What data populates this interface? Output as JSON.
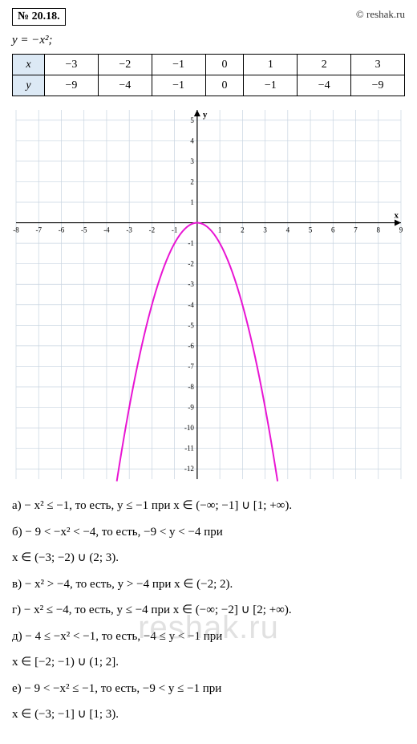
{
  "header": {
    "problem_number": "№ 20.18.",
    "copyright": "© reshak.ru"
  },
  "equation": "y = −x²;",
  "table": {
    "x_label": "x",
    "y_label": "y",
    "x_values": [
      "−3",
      "−2",
      "−1",
      "0",
      "1",
      "2",
      "3"
    ],
    "y_values": [
      "−9",
      "−4",
      "−1",
      "0",
      "−1",
      "−4",
      "−9"
    ]
  },
  "chart": {
    "type": "line",
    "xlim": [
      -8,
      9
    ],
    "ylim": [
      -12.5,
      5.5
    ],
    "x_ticks": [
      -8,
      -7,
      -6,
      -5,
      -4,
      -3,
      -2,
      -1,
      1,
      2,
      3,
      4,
      5,
      6,
      7,
      8,
      9
    ],
    "y_ticks": [
      -12,
      -11,
      -10,
      -9,
      -8,
      -7,
      -6,
      -5,
      -4,
      -3,
      -2,
      -1,
      1,
      2,
      3,
      4,
      5
    ],
    "x_axis_label": "x",
    "y_axis_label": "y",
    "grid_color": "#c8d4e0",
    "axis_color": "#000000",
    "background_color": "#ffffff",
    "curve_color": "#e815d3",
    "curve_width": 2,
    "tick_fontsize": 9,
    "series": {
      "function": "-x^2",
      "x_range": [
        -3.55,
        3.55
      ],
      "step": 0.1
    }
  },
  "answers": {
    "a": "а) − x² ≤ −1, то есть, y ≤ −1 при x ∈ (−∞; −1] ∪ [1; +∞).",
    "b": "б) − 9 < −x² < −4, то есть, −9 < y < −4 при",
    "b2": "x ∈ (−3; −2) ∪ (2; 3).",
    "v": "в) − x² > −4, то есть, y > −4 при x ∈ (−2; 2).",
    "g": "г) − x² ≤ −4, то есть, y ≤ −4 при x ∈ (−∞; −2] ∪ [2; +∞).",
    "d": "д) − 4 ≤ −x² < −1, то есть, −4 ≤ y < −1 при",
    "d2": "x ∈ [−2; −1) ∪ (1; 2].",
    "e": "е) − 9 < −x² ≤ −1, то есть, −9 < y ≤ −1 при",
    "e2": "x ∈ (−3; −1] ∪ [1; 3)."
  },
  "watermark": "reshak.ru"
}
